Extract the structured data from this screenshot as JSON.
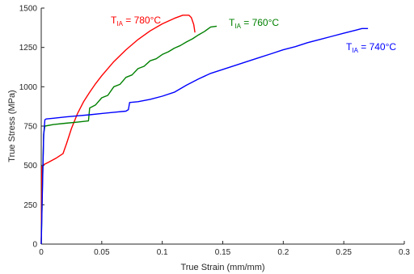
{
  "chart_data": {
    "type": "line",
    "xlabel": "True Strain (mm/mm)",
    "ylabel": "True Stress (MPa)",
    "xlim": [
      0,
      0.3
    ],
    "ylim": [
      0,
      1500
    ],
    "xticks": [
      0,
      0.05,
      0.1,
      0.15,
      0.2,
      0.25,
      0.3
    ],
    "xtick_labels": [
      "0",
      "0.05",
      "0.1",
      "0.15",
      "0.2",
      "0.25",
      "0.3"
    ],
    "yticks": [
      0,
      250,
      500,
      750,
      1000,
      1250,
      1500
    ],
    "ytick_labels": [
      "0",
      "250",
      "500",
      "750",
      "1000",
      "1250",
      "1500"
    ],
    "grid": false,
    "series": [
      {
        "label_main": "T",
        "label_sub": "IA",
        "label_rest": " = 780°C",
        "color": "#ff0000",
        "x": [
          0,
          0.0005,
          0.002,
          0.006,
          0.012,
          0.018,
          0.021,
          0.025,
          0.03,
          0.035,
          0.04,
          0.045,
          0.05,
          0.06,
          0.07,
          0.08,
          0.09,
          0.1,
          0.11,
          0.117,
          0.122,
          0.124,
          0.126,
          0.127
        ],
        "y": [
          0,
          490,
          505,
          520,
          545,
          575,
          640,
          735,
          830,
          905,
          965,
          1020,
          1070,
          1160,
          1235,
          1300,
          1355,
          1400,
          1435,
          1455,
          1455,
          1440,
          1395,
          1345
        ]
      },
      {
        "label_main": "T",
        "label_sub": "IA",
        "label_rest": " = 760°C",
        "color": "#008000",
        "x": [
          0,
          0.001,
          0.002,
          0.003,
          0.01,
          0.02,
          0.03,
          0.039,
          0.04,
          0.045,
          0.05,
          0.055,
          0.06,
          0.065,
          0.07,
          0.075,
          0.08,
          0.085,
          0.09,
          0.095,
          0.1,
          0.105,
          0.11,
          0.115,
          0.12,
          0.125,
          0.13,
          0.135,
          0.14,
          0.145
        ],
        "y": [
          0,
          380,
          700,
          750,
          760,
          768,
          775,
          783,
          865,
          885,
          930,
          945,
          1000,
          1015,
          1060,
          1075,
          1115,
          1130,
          1165,
          1178,
          1205,
          1222,
          1245,
          1262,
          1285,
          1305,
          1330,
          1352,
          1380,
          1385
        ]
      },
      {
        "label_main": "T",
        "label_sub": "IA",
        "label_rest": " = 740°C",
        "color": "#0000ff",
        "x": [
          0,
          0.001,
          0.002,
          0.003,
          0.004,
          0.01,
          0.02,
          0.03,
          0.04,
          0.05,
          0.06,
          0.07,
          0.072,
          0.073,
          0.08,
          0.09,
          0.1,
          0.11,
          0.12,
          0.13,
          0.14,
          0.15,
          0.16,
          0.17,
          0.18,
          0.19,
          0.2,
          0.21,
          0.22,
          0.23,
          0.24,
          0.25,
          0.26,
          0.265,
          0.27
        ],
        "y": [
          0,
          350,
          690,
          790,
          795,
          800,
          808,
          815,
          822,
          830,
          838,
          845,
          855,
          900,
          905,
          920,
          940,
          965,
          1010,
          1050,
          1085,
          1110,
          1135,
          1160,
          1185,
          1210,
          1235,
          1255,
          1280,
          1300,
          1320,
          1340,
          1360,
          1370,
          1370
        ]
      }
    ]
  }
}
